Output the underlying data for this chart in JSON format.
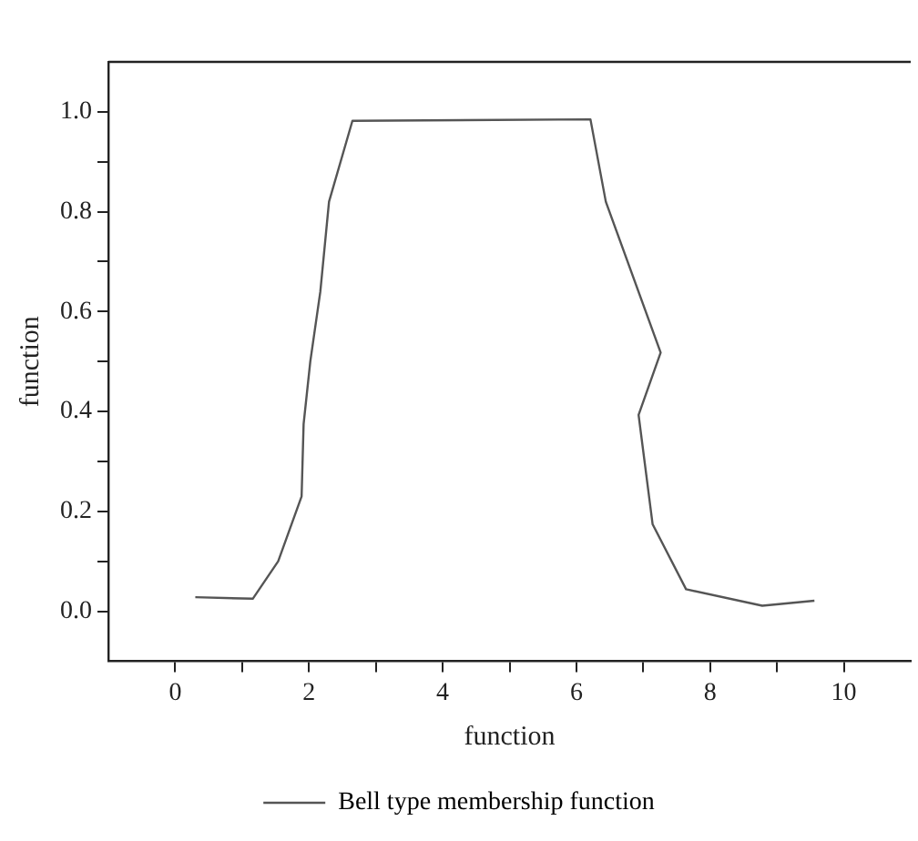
{
  "chart_data": {
    "type": "line",
    "xlabel": "function",
    "ylabel": "function",
    "x": [
      0.3,
      1.16,
      1.54,
      1.89,
      1.92,
      2.02,
      2.17,
      2.3,
      2.65,
      6.21,
      6.44,
      7.26,
      6.93,
      7.14,
      7.64,
      8.78,
      9.56
    ],
    "series": [
      {
        "name": "Bell type membership function",
        "color": "#555555",
        "values": [
          0.028,
          0.025,
          0.1,
          0.23,
          0.375,
          0.5,
          0.64,
          0.82,
          0.982,
          0.985,
          0.82,
          0.518,
          0.393,
          0.174,
          0.044,
          0.011,
          0.021
        ]
      }
    ],
    "xlim": [
      -1,
      11
    ],
    "xticks": [
      0,
      {
        "value": 1,
        "label": null
      },
      2,
      {
        "value": 3,
        "label": null
      },
      4,
      {
        "value": 5,
        "label": null
      },
      6,
      {
        "value": 7,
        "label": null
      },
      8,
      {
        "value": 9,
        "label": null
      },
      10
    ],
    "ylim": [
      -0.1,
      1.1
    ],
    "yticks": [
      {
        "value": 0,
        "label": "0.0"
      },
      {
        "value": 0.1,
        "label": null
      },
      0.2,
      {
        "value": 0.3,
        "label": null
      },
      0.4,
      {
        "value": 0.5,
        "label": null
      },
      0.6,
      {
        "value": 0.7,
        "label": null
      },
      0.8,
      {
        "value": 0.9,
        "label": null
      },
      {
        "value": 1,
        "label": "1.0"
      }
    ],
    "grid": false,
    "legend": "bottom",
    "marker": "none",
    "line_style": "solid"
  }
}
